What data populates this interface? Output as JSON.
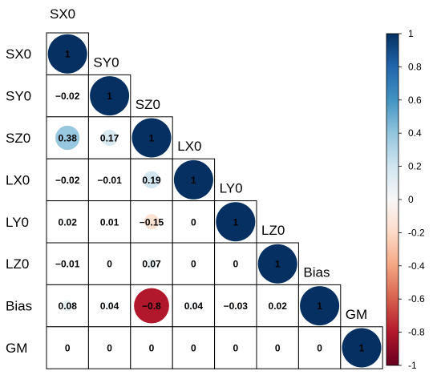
{
  "chart_data": {
    "type": "heatmap",
    "variables": [
      "SX0",
      "SY0",
      "SZ0",
      "LX0",
      "LY0",
      "LZ0",
      "Bias",
      "GM"
    ],
    "matrix_lower": [
      [
        1
      ],
      [
        -0.02,
        1
      ],
      [
        0.38,
        0.17,
        1
      ],
      [
        -0.02,
        -0.01,
        0.19,
        1
      ],
      [
        0.02,
        0.01,
        -0.15,
        0,
        1
      ],
      [
        -0.01,
        0,
        0.07,
        0,
        0,
        1
      ],
      [
        0.08,
        0.04,
        -0.8,
        0.04,
        -0.03,
        0.02,
        1
      ],
      [
        0,
        0,
        0,
        0,
        0,
        0,
        0,
        1
      ]
    ],
    "value_labels": [
      [
        "1"
      ],
      [
        "−0.02",
        "1"
      ],
      [
        "0.38",
        "0.17",
        "1"
      ],
      [
        "−0.02",
        "−0.01",
        "0.19",
        "1"
      ],
      [
        "0.02",
        "0.01",
        "−0.15",
        "0",
        "1"
      ],
      [
        "−0.01",
        "0",
        "0.07",
        "0",
        "0",
        "1"
      ],
      [
        "0.08",
        "0.04",
        "−0.8",
        "0.04",
        "−0.03",
        "0.02",
        "1"
      ],
      [
        "0",
        "0",
        "0",
        "0",
        "0",
        "0",
        "0",
        "1"
      ]
    ],
    "colorbar": {
      "range": [
        -1,
        1
      ],
      "ticks": [
        1,
        0.8,
        0.6,
        0.4,
        0.2,
        0,
        -0.2,
        -0.4,
        -0.6,
        -0.8,
        -1
      ],
      "tick_labels": [
        "1",
        "0.8",
        "0.6",
        "0.4",
        "0.2",
        "0",
        "-0.2",
        "-0.4",
        "-0.6",
        "-0.8",
        "-1"
      ],
      "colors": {
        "negative_end": "#67001F",
        "negative_mid": "#D6604D",
        "neutral": "#F7F7F7",
        "positive_mid": "#4393C3",
        "positive_end": "#053061"
      }
    },
    "title": "",
    "xlabel": "",
    "ylabel": "",
    "legend_position": "right"
  }
}
